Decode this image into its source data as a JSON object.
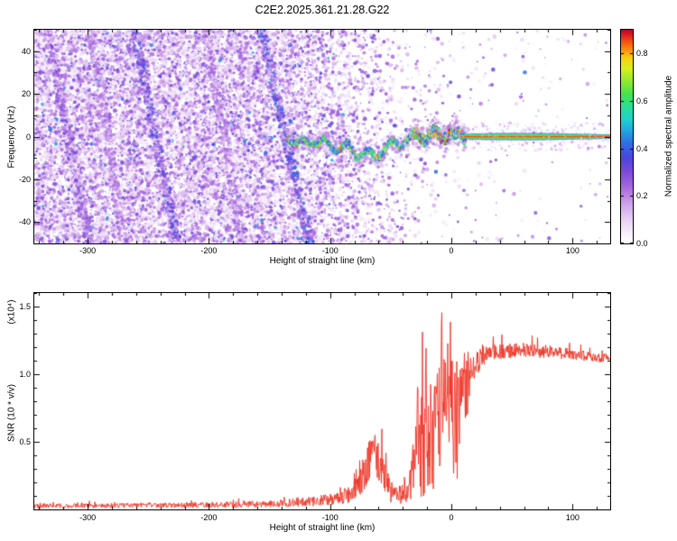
{
  "title": "C2E2.2025.361.21.28.G22",
  "colorbar": {
    "label": "Normalized spectral amplitude",
    "ticks": [
      "0.0",
      "0.2",
      "0.4",
      "0.6",
      "0.8"
    ],
    "vmax": 0.9,
    "stops": [
      [
        0,
        "#ffffff"
      ],
      [
        0.04,
        "#faf2fc"
      ],
      [
        0.1,
        "#ead6f5"
      ],
      [
        0.18,
        "#d0a5eb"
      ],
      [
        0.26,
        "#aa69de"
      ],
      [
        0.33,
        "#7f4bd8"
      ],
      [
        0.4,
        "#4b45dd"
      ],
      [
        0.47,
        "#2f6fe6"
      ],
      [
        0.53,
        "#21a8e0"
      ],
      [
        0.58,
        "#1fd1cf"
      ],
      [
        0.64,
        "#2adf95"
      ],
      [
        0.7,
        "#45e34e"
      ],
      [
        0.76,
        "#90e92e"
      ],
      [
        0.82,
        "#d9ef1e"
      ],
      [
        0.87,
        "#f8cf10"
      ],
      [
        0.91,
        "#fa8c0c"
      ],
      [
        0.95,
        "#f54a14"
      ],
      [
        1,
        "#c2002e"
      ]
    ]
  },
  "chart_data": [
    {
      "type": "heatmap",
      "xlabel": "Height of straight line (km)",
      "ylabel": "Frequency (Hz)",
      "xlim": [
        -344,
        131
      ],
      "ylim": [
        -50,
        50
      ],
      "xticks": [
        "-300",
        "-200",
        "-100",
        "0",
        "100"
      ],
      "yticks": [
        "-40",
        "-20",
        "0",
        "20",
        "40"
      ],
      "description": "Broadband pale-purple speckle noise fills heights below about -100 km with faint diagonal blue interference streaks; a narrow carrier near 0 Hz emerges around -130 km, wanders between -10 and +3 Hz with cyan/green amplitude, strengthens with red-orange cores between -30 and +10 km, then becomes a tight horizontal red line at 0 Hz out to 131 km surrounded by a narrow lavender fringe.",
      "noise": {
        "density_profile": [
          [
            -344,
            0.97
          ],
          [
            -160,
            0.92
          ],
          [
            -120,
            0.7
          ],
          [
            -90,
            0.45
          ],
          [
            -60,
            0.22
          ],
          [
            -30,
            0.08
          ],
          [
            0,
            0.035
          ],
          [
            40,
            0.02
          ],
          [
            131,
            0.015
          ]
        ],
        "streaks": [
          {
            "top": -333,
            "bottom": -299,
            "strength": 0.45
          },
          {
            "top": -297,
            "bottom": -270,
            "strength": 0.3
          },
          {
            "top": -262,
            "bottom": -226,
            "strength": 0.6
          },
          {
            "top": -203,
            "bottom": -172,
            "strength": 0.35
          },
          {
            "top": -157,
            "bottom": -117,
            "strength": 0.7
          }
        ]
      },
      "signal": {
        "track": [
          [
            -135,
            -1
          ],
          [
            -120,
            -3
          ],
          [
            -105,
            -2
          ],
          [
            -95,
            -6
          ],
          [
            -85,
            -4
          ],
          [
            -78,
            -9
          ],
          [
            -70,
            -7
          ],
          [
            -62,
            -10
          ],
          [
            -55,
            -6
          ],
          [
            -48,
            -3
          ],
          [
            -42,
            -4
          ],
          [
            -35,
            -1
          ],
          [
            -28,
            1
          ],
          [
            -22,
            -1
          ],
          [
            -15,
            2
          ],
          [
            -8,
            0
          ],
          [
            0,
            1
          ],
          [
            10,
            0
          ],
          [
            131,
            0
          ]
        ],
        "line_value": 0,
        "line_start_km": 8,
        "core_amplitude": 0.95
      }
    },
    {
      "type": "line",
      "xlabel": "Height of straight line (km)",
      "ylabel": "SNR (10 * v/v)",
      "units_label": "(x10⁴)",
      "xlim": [
        -344,
        131
      ],
      "ylim": [
        0,
        1.6
      ],
      "xticks": [
        "-300",
        "-200",
        "-100",
        "0",
        "100"
      ],
      "yticks": [
        "0.5",
        "1.0",
        "1.5"
      ],
      "color": "#ee3224",
      "envelope": [
        [
          -344,
          0.025,
          0.02
        ],
        [
          -250,
          0.03,
          0.02
        ],
        [
          -180,
          0.035,
          0.025
        ],
        [
          -140,
          0.045,
          0.03
        ],
        [
          -115,
          0.06,
          0.04
        ],
        [
          -95,
          0.08,
          0.05
        ],
        [
          -80,
          0.12,
          0.08
        ],
        [
          -72,
          0.3,
          0.18
        ],
        [
          -64,
          0.42,
          0.16
        ],
        [
          -57,
          0.3,
          0.15
        ],
        [
          -50,
          0.12,
          0.08
        ],
        [
          -42,
          0.1,
          0.07
        ],
        [
          -34,
          0.18,
          0.14
        ],
        [
          -28,
          0.45,
          0.35
        ],
        [
          -20,
          0.55,
          0.45
        ],
        [
          -12,
          0.6,
          0.5
        ],
        [
          -4,
          0.7,
          0.45
        ],
        [
          4,
          0.75,
          0.4
        ],
        [
          12,
          0.9,
          0.3
        ],
        [
          20,
          1.08,
          0.12
        ],
        [
          30,
          1.16,
          0.06
        ],
        [
          60,
          1.18,
          0.06
        ],
        [
          90,
          1.16,
          0.05
        ],
        [
          115,
          1.13,
          0.04
        ],
        [
          131,
          1.12,
          0.04
        ]
      ],
      "spikes": [
        [
          -66,
          0.5,
          2
        ],
        [
          -63,
          0.55,
          1.5
        ],
        [
          -28,
          0.92,
          1.2
        ],
        [
          -24,
          0.7,
          1
        ],
        [
          -21,
          1.3,
          1.2
        ],
        [
          -17,
          0.9,
          1
        ],
        [
          -14,
          1.02,
          1
        ],
        [
          -11,
          0.85,
          1
        ],
        [
          -8,
          1.62,
          1.3
        ],
        [
          -6,
          1.1,
          1
        ],
        [
          -3,
          1.22,
          1.2
        ],
        [
          0,
          0.95,
          1
        ],
        [
          3,
          1.05,
          1
        ],
        [
          6,
          0.9,
          1
        ],
        [
          9,
          1.12,
          1.2
        ],
        [
          13,
          1.0,
          1
        ]
      ]
    }
  ]
}
